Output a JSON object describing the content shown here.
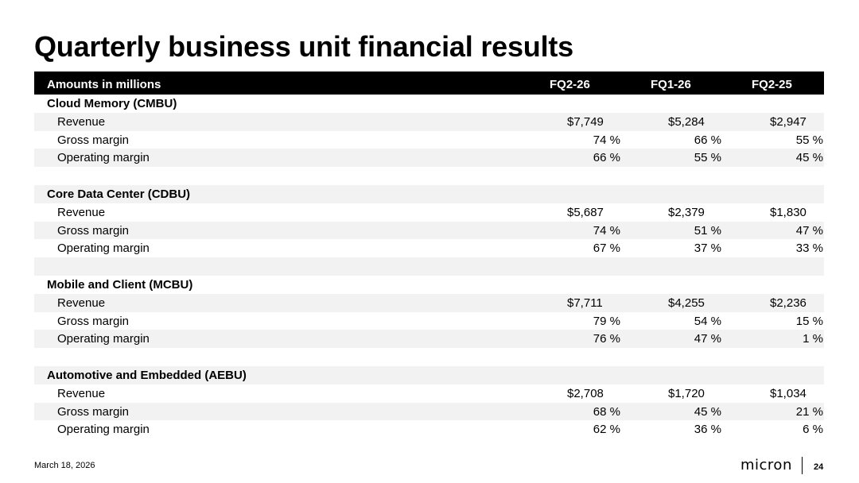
{
  "title": "Quarterly business unit financial results",
  "table": {
    "header": {
      "label": "Amounts in millions",
      "cols": [
        "FQ2-26",
        "FQ1-26",
        "FQ2-25"
      ]
    },
    "segments": [
      {
        "name": "Cloud Memory (CMBU)",
        "rows": [
          {
            "label": "Revenue",
            "values": [
              "$7,749",
              "$5,284",
              "$2,947"
            ]
          },
          {
            "label": "Gross margin",
            "values": [
              "74 %",
              "66 %",
              "55 %"
            ]
          },
          {
            "label": "Operating margin",
            "values": [
              "66 %",
              "55 %",
              "45 %"
            ]
          }
        ]
      },
      {
        "name": "Core Data Center (CDBU)",
        "rows": [
          {
            "label": "Revenue",
            "values": [
              "$5,687",
              "$2,379",
              "$1,830"
            ]
          },
          {
            "label": "Gross margin",
            "values": [
              "74 %",
              "51 %",
              "47 %"
            ]
          },
          {
            "label": "Operating margin",
            "values": [
              "67 %",
              "37 %",
              "33 %"
            ]
          }
        ]
      },
      {
        "name": "Mobile and Client (MCBU)",
        "rows": [
          {
            "label": "Revenue",
            "values": [
              "$7,711",
              "$4,255",
              "$2,236"
            ]
          },
          {
            "label": "Gross margin",
            "values": [
              "79 %",
              "54 %",
              "15 %"
            ]
          },
          {
            "label": "Operating margin",
            "values": [
              "76 %",
              "47 %",
              "1 %"
            ]
          }
        ]
      },
      {
        "name": "Automotive and Embedded (AEBU)",
        "rows": [
          {
            "label": "Revenue",
            "values": [
              "$2,708",
              "$1,720",
              "$1,034"
            ]
          },
          {
            "label": "Gross margin",
            "values": [
              "68 %",
              "45 %",
              "21 %"
            ]
          },
          {
            "label": "Operating margin",
            "values": [
              "62 %",
              "36 %",
              "6 %"
            ]
          }
        ]
      }
    ]
  },
  "footer": {
    "date": "March 18, 2026",
    "logo": "micron",
    "page": "24"
  }
}
